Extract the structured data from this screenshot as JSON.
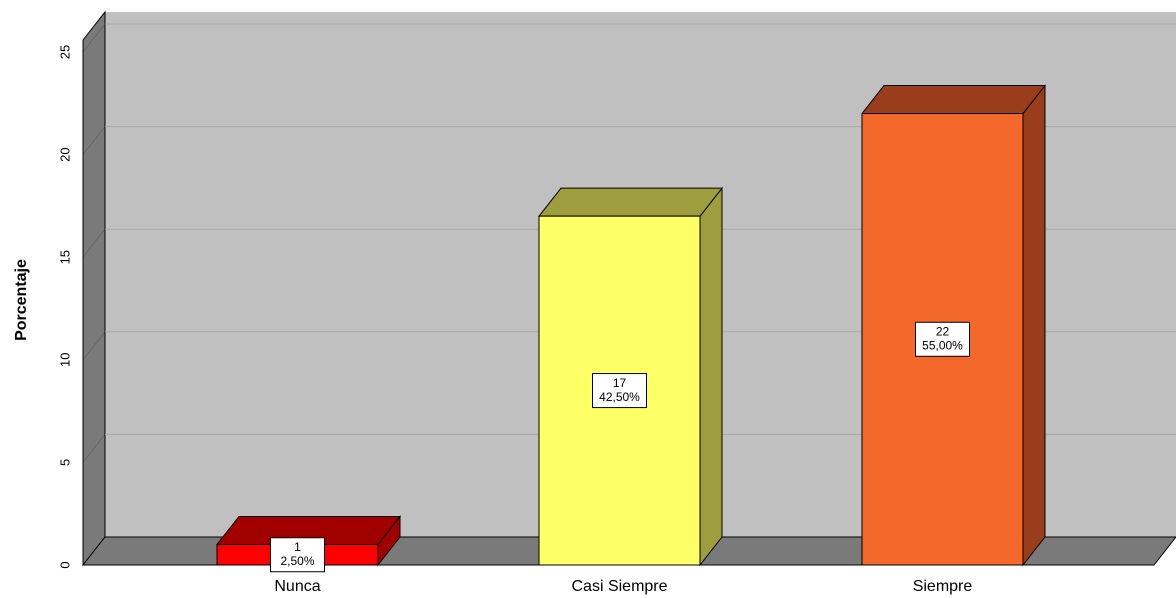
{
  "chart_data": {
    "type": "bar3d",
    "y_label": "Porcentaje",
    "categories": [
      "Nunca",
      "Casi Siempre",
      "Siempre"
    ],
    "values": [
      1,
      17,
      22
    ],
    "percent_labels": [
      "2,50%",
      "42,50%",
      "55,00%"
    ],
    "colors": [
      "#ff0000",
      "#ffff66",
      "#f4692b"
    ],
    "side_colors": [
      "#a00000",
      "#9e9e3f",
      "#993d1a"
    ],
    "ylim": [
      0,
      25
    ],
    "yticks": [
      0,
      5,
      10,
      15,
      20,
      25
    ],
    "grid": true
  }
}
